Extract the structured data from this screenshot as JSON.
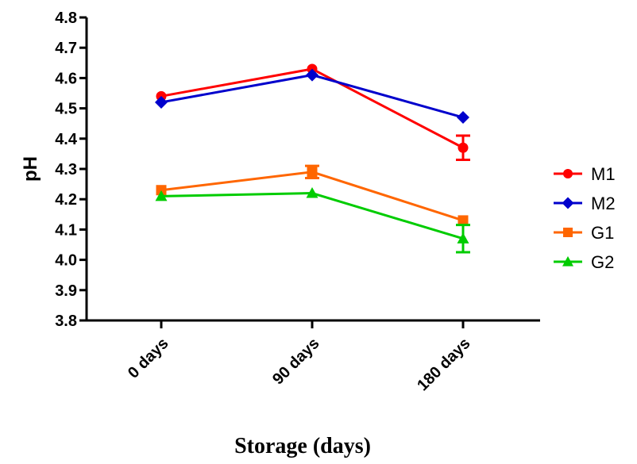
{
  "chart_data": {
    "type": "line",
    "categories": [
      "0 days",
      "90 days",
      "180 days"
    ],
    "xlabel": "Storage (days)",
    "ylabel": "pH",
    "ylim": [
      3.8,
      4.8
    ],
    "yticks": [
      "3.8",
      "3.9",
      "4.0",
      "4.1",
      "4.2",
      "4.3",
      "4.4",
      "4.5",
      "4.6",
      "4.7",
      "4.8"
    ],
    "grid": false,
    "legend_position": "right",
    "series": [
      {
        "name": "M1",
        "values": [
          4.54,
          4.63,
          4.37
        ],
        "errors": [
          0.005,
          0.005,
          0.04
        ],
        "color": "#ff0000",
        "marker": "circle"
      },
      {
        "name": "M2",
        "values": [
          4.52,
          4.61,
          4.47
        ],
        "errors": [
          0.005,
          0.005,
          0.005
        ],
        "color": "#0000cc",
        "marker": "diamond"
      },
      {
        "name": "G1",
        "values": [
          4.23,
          4.29,
          4.13
        ],
        "errors": [
          0.005,
          0.02,
          0.005
        ],
        "color": "#ff6600",
        "marker": "square"
      },
      {
        "name": "G2",
        "values": [
          4.21,
          4.22,
          4.07
        ],
        "errors": [
          0.005,
          0.005,
          0.045
        ],
        "color": "#00cc00",
        "marker": "triangle"
      }
    ]
  }
}
